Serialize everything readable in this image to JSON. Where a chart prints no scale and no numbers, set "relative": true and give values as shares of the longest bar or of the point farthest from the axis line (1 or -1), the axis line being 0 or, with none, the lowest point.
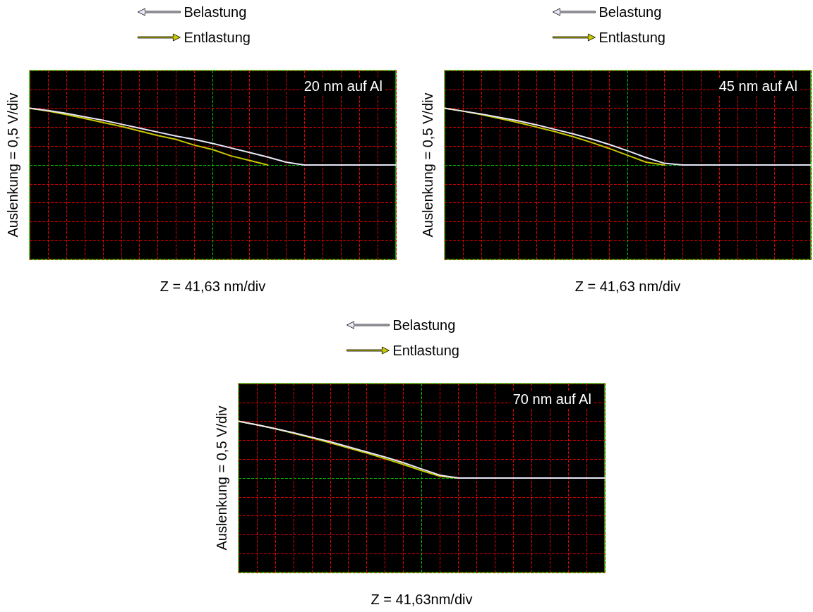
{
  "chart_data": [
    {
      "type": "line",
      "relative": true,
      "xlabel": "Z = 41,63 nm/div",
      "ylabel": "Auslenkung = 0,5 V/div",
      "annotations": [
        "20 nm auf Al"
      ],
      "legend": "top",
      "grid": true,
      "marker": "none",
      "line_style": "solid",
      "categories": [
        null,
        null,
        null,
        null,
        null,
        null,
        null,
        null,
        null,
        null,
        null,
        null,
        null,
        null,
        null,
        null,
        null,
        null,
        null,
        null,
        null
      ],
      "series": [
        {
          "name": "Belastung",
          "color": "#e8e8f8",
          "values": [
            1.0,
            0.96,
            0.91,
            0.85,
            0.79,
            0.72,
            0.65,
            0.58,
            0.51,
            0.45,
            0.38,
            0.3,
            0.22,
            0.14,
            0.05,
            0,
            0,
            0,
            0,
            0,
            0
          ]
        },
        {
          "name": "Entlastung",
          "color": "#c8c800",
          "values": [
            1.0,
            0.95,
            0.89,
            0.82,
            0.75,
            0.68,
            0.6,
            0.52,
            0.45,
            0.35,
            0.27,
            0.16,
            0.08,
            0,
            null,
            null,
            null,
            null,
            null,
            null,
            null
          ]
        }
      ]
    },
    {
      "type": "line",
      "relative": true,
      "xlabel": "Z = 41,63 nm/div",
      "ylabel": "Auslenkung = 0,5 V/div",
      "annotations": [
        "45 nm auf Al"
      ],
      "legend": "top",
      "grid": true,
      "marker": "none",
      "line_style": "solid",
      "categories": [
        null,
        null,
        null,
        null,
        null,
        null,
        null,
        null,
        null,
        null,
        null,
        null,
        null,
        null,
        null,
        null,
        null,
        null,
        null,
        null,
        null
      ],
      "series": [
        {
          "name": "Belastung",
          "color": "#e8e8f8",
          "values": [
            1.0,
            0.95,
            0.9,
            0.84,
            0.78,
            0.71,
            0.63,
            0.55,
            0.46,
            0.36,
            0.25,
            0.13,
            0.03,
            0,
            0,
            0,
            0,
            0,
            0,
            0,
            0
          ]
        },
        {
          "name": "Entlastung",
          "color": "#c8c800",
          "values": [
            1.0,
            0.95,
            0.89,
            0.82,
            0.75,
            0.67,
            0.59,
            0.5,
            0.4,
            0.29,
            0.17,
            0.05,
            0,
            null,
            null,
            null,
            null,
            null,
            null,
            null,
            null
          ]
        }
      ]
    },
    {
      "type": "line",
      "relative": true,
      "xlabel": "Z = 41,63nm/div",
      "ylabel": "Auslenkung = 0,5 V/div",
      "annotations": [
        "70 nm auf Al"
      ],
      "legend": "top",
      "grid": true,
      "marker": "none",
      "line_style": "solid",
      "categories": [
        null,
        null,
        null,
        null,
        null,
        null,
        null,
        null,
        null,
        null,
        null,
        null,
        null,
        null,
        null,
        null,
        null,
        null,
        null,
        null,
        null
      ],
      "series": [
        {
          "name": "Belastung",
          "color": "#e8e8f8",
          "values": [
            1.0,
            0.94,
            0.87,
            0.8,
            0.72,
            0.64,
            0.55,
            0.46,
            0.37,
            0.27,
            0.16,
            0.05,
            0,
            0,
            0,
            0,
            0,
            0,
            0,
            0,
            0
          ]
        },
        {
          "name": "Entlastung",
          "color": "#c8c800",
          "values": [
            1.0,
            0.94,
            0.87,
            0.79,
            0.71,
            0.62,
            0.53,
            0.44,
            0.34,
            0.24,
            0.13,
            0.03,
            0,
            null,
            null,
            null,
            null,
            null,
            null,
            null,
            null
          ]
        }
      ]
    }
  ]
}
